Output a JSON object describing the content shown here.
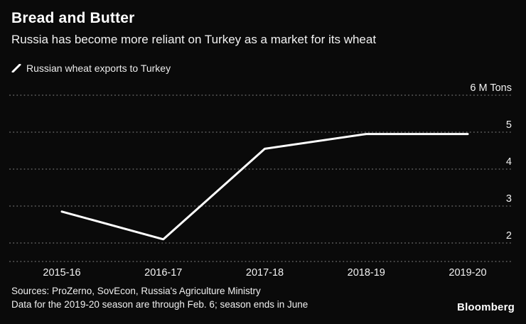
{
  "header": {
    "title": "Bread and Butter",
    "subtitle": "Russia has become more reliant on Turkey as a market for its wheat"
  },
  "legend": {
    "label": "Russian wheat exports to Turkey",
    "icon": "line-swatch-icon"
  },
  "chart_data": {
    "type": "line",
    "categories": [
      "2015-16",
      "2016-17",
      "2017-18",
      "2018-19",
      "2019-20"
    ],
    "series": [
      {
        "name": "Russian wheat exports to Turkey",
        "values": [
          2.85,
          2.1,
          4.55,
          4.95,
          4.95
        ]
      }
    ],
    "title": "Bread and Butter",
    "xlabel": "",
    "ylabel": "M Tons",
    "ylim": [
      2,
      6
    ],
    "yticks": [
      2,
      3,
      4,
      5,
      6
    ],
    "ytick_labels": [
      "2",
      "3",
      "4",
      "5",
      "6 M Tons"
    ],
    "grid": "horizontal-dotted",
    "legend_position": "top-left",
    "line_color": "#ffffff"
  },
  "footer": {
    "sources_line1": "Sources: ProZerno, SovEcon, Russia's Agriculture Ministry",
    "sources_line2": "Data for the 2019-20 season are through Feb. 6; season ends in June",
    "logo": "Bloomberg"
  },
  "colors": {
    "background": "#0a0a0a",
    "text": "#ffffff",
    "grid": "#525252"
  }
}
